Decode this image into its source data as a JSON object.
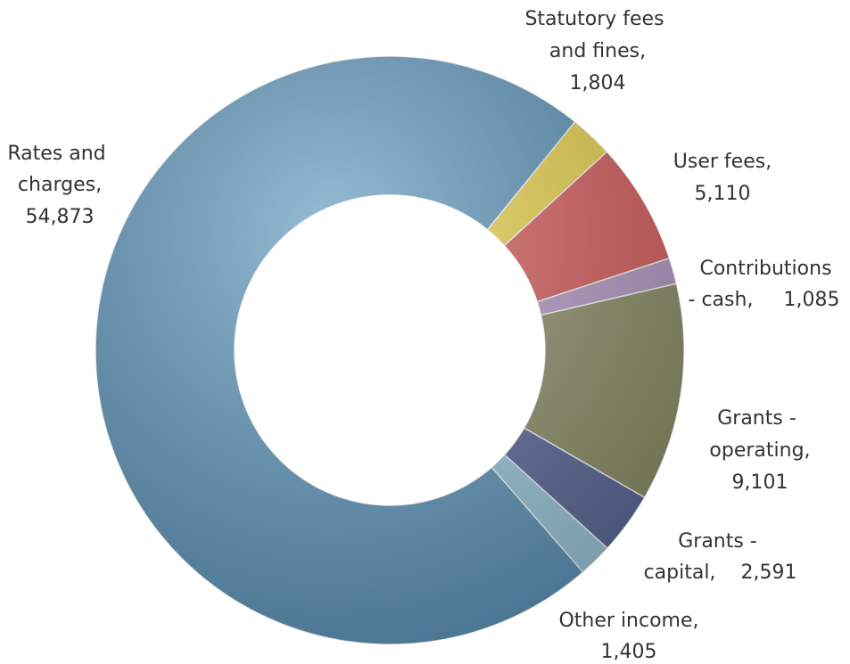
{
  "chart_data": {
    "type": "donut",
    "categories": [
      "Statutory fees and fines,",
      "User fees,",
      "Contributions - cash,",
      "Grants - operating,",
      "Grants - capital,",
      "Other income,",
      "Rates and charges,"
    ],
    "values": [
      1804,
      5110,
      1085,
      9101,
      2591,
      1405,
      54873
    ],
    "value_labels": [
      "1,804",
      "5,110",
      "1,085",
      "9,101",
      "2,591",
      "1,405",
      "54,873"
    ],
    "colors": [
      "#f0d84a",
      "#dc5c5c",
      "#b99ccb",
      "#8e9268",
      "#5b6a9c",
      "#9dcde2",
      "#5e98bf"
    ]
  }
}
